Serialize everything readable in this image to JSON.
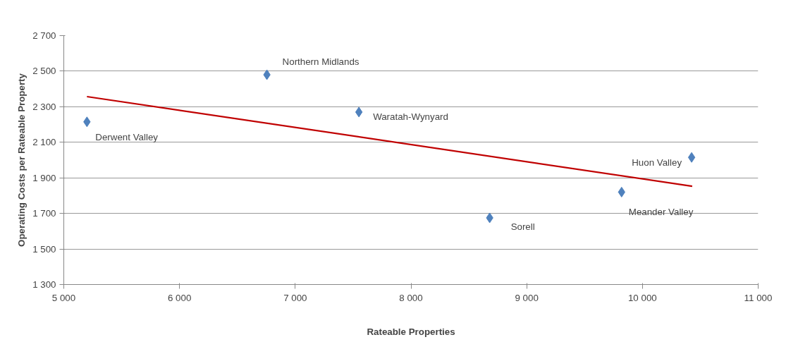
{
  "chart_data": {
    "type": "scatter",
    "xlabel": "Rateable Properties",
    "ylabel": "Operating Costs per Rateable Property",
    "series": [
      {
        "color": "#4f81bd",
        "x": [
          5200,
          6755,
          7550,
          8680,
          9820,
          10425
        ],
        "values": [
          2215,
          2480,
          2270,
          1675,
          1820,
          2015
        ],
        "marker": "diamond"
      },
      {
        "type": "line",
        "color": "#c00000",
        "x": [
          5200,
          10430
        ],
        "values": [
          2357,
          1853
        ],
        "line_style": "solid"
      }
    ],
    "annotations": [
      {
        "text": "Derwent Valley",
        "x": 5200,
        "y": 2215
      },
      {
        "text": "Northern Midlands",
        "x": 6755,
        "y": 2480
      },
      {
        "text": "Waratah-Wynyard",
        "x": 7550,
        "y": 2270
      },
      {
        "text": "Sorell",
        "x": 8680,
        "y": 1675
      },
      {
        "text": "Meander Valley",
        "x": 9820,
        "y": 1820
      },
      {
        "text": "Huon Valley",
        "x": 10425,
        "y": 2015
      }
    ],
    "xlim": [
      5000,
      11000
    ],
    "xticks": [
      {
        "value": 5000,
        "label": "5 000"
      },
      {
        "value": 6000,
        "label": "6 000"
      },
      {
        "value": 7000,
        "label": "7 000"
      },
      {
        "value": 8000,
        "label": "8 000"
      },
      {
        "value": 9000,
        "label": "9 000"
      },
      {
        "value": 10000,
        "label": "10 000"
      },
      {
        "value": 11000,
        "label": "11 000"
      }
    ],
    "ylim": [
      1300,
      2700
    ],
    "yticks": [
      {
        "value": 1300,
        "label": "1 300"
      },
      {
        "value": 1500,
        "label": "1 500"
      },
      {
        "value": 1700,
        "label": "1 700"
      },
      {
        "value": 1900,
        "label": "1 900"
      },
      {
        "value": 2100,
        "label": "2 100"
      },
      {
        "value": 2300,
        "label": "2 300"
      },
      {
        "value": 2500,
        "label": "2 500"
      },
      {
        "value": 2700,
        "label": "2 700"
      }
    ],
    "grid": "y"
  }
}
